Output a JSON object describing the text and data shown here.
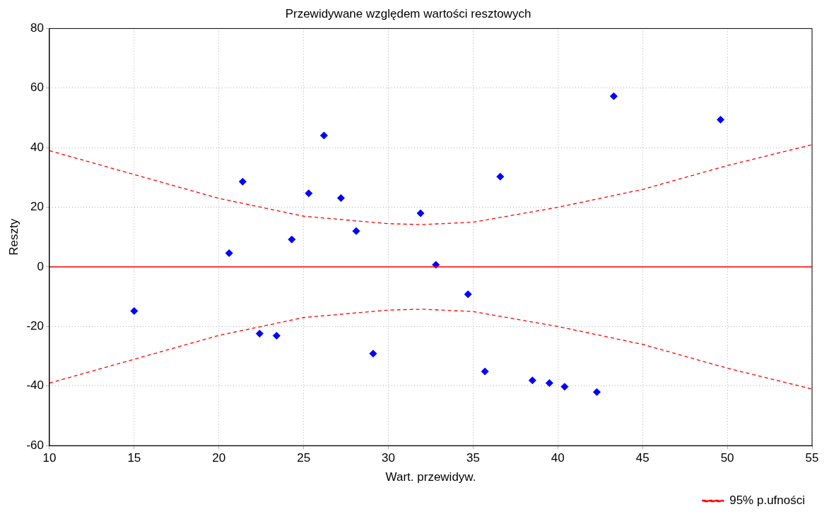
{
  "chart_data": {
    "type": "scatter",
    "title": "Przewidywane względem wartości resztowych",
    "xlabel": "Wart. przewidyw.",
    "ylabel": "Reszty",
    "xlim": [
      10,
      55
    ],
    "xticks": [
      10,
      15,
      20,
      25,
      30,
      35,
      40,
      45,
      50,
      55
    ],
    "ylim": [
      -60,
      80
    ],
    "yticks": [
      -60,
      -40,
      -20,
      0,
      20,
      40,
      60,
      80
    ],
    "grid": true,
    "legend": "bottom right",
    "series": [
      {
        "color": "#0000ff",
        "marker": "diamond",
        "x": [
          15.0,
          20.6,
          21.4,
          22.4,
          23.4,
          24.3,
          25.3,
          26.2,
          27.2,
          28.1,
          29.1,
          31.9,
          32.8,
          34.7,
          35.7,
          36.6,
          38.5,
          39.5,
          40.4,
          42.3,
          43.3,
          49.6
        ],
        "values": [
          -14.8,
          4.6,
          28.6,
          -22.4,
          -23.1,
          9.2,
          24.7,
          44.1,
          23.1,
          12.0,
          -29.1,
          18.0,
          0.7,
          -9.2,
          -35.1,
          30.3,
          -38.1,
          -39.0,
          -40.2,
          -42.0,
          57.3,
          49.4
        ]
      },
      {
        "type": "line",
        "name": "95% p.ufności",
        "color": "#ff0000",
        "marker": "none",
        "line_style": "dashed",
        "x": [
          10,
          15,
          20,
          25,
          30,
          32,
          35,
          40,
          45,
          50,
          55
        ],
        "values": [
          39,
          31,
          23,
          17,
          14.5,
          14.2,
          15,
          20,
          26,
          34,
          41
        ]
      },
      {
        "type": "line",
        "color": "#ff0000",
        "marker": "none",
        "line_style": "dashed",
        "x": [
          10,
          15,
          20,
          25,
          30,
          32,
          35,
          40,
          45,
          50,
          55
        ],
        "values": [
          -39,
          -31,
          -23,
          -17,
          -14.5,
          -14.2,
          -15,
          -20,
          -26,
          -34,
          -41
        ]
      }
    ],
    "ref_lines": [
      {
        "axis": "y",
        "value": 0,
        "color": "#ff0000",
        "line_style": "solid"
      }
    ]
  }
}
